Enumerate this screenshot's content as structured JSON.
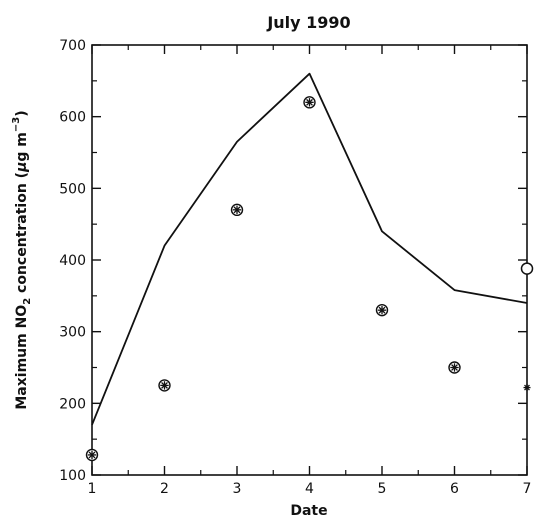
{
  "chart_data": {
    "type": "line",
    "title": "July 1990",
    "xlabel": "Date",
    "ylabel_parts": {
      "pre": "Maximum NO",
      "sub": "2",
      "mid": " concentration (",
      "mu": "μ",
      "unit": "g m",
      "sup": "−3",
      "post": ")"
    },
    "xlim": [
      1,
      7
    ],
    "ylim": [
      100,
      700
    ],
    "x_ticks": [
      "1",
      "2",
      "3",
      "4",
      "5",
      "6",
      "7"
    ],
    "y_ticks": [
      "100",
      "200",
      "300",
      "400",
      "500",
      "600",
      "700"
    ],
    "grid": false,
    "series": [
      {
        "style": "line",
        "x": [
          1,
          2,
          3,
          4,
          5,
          6,
          7
        ],
        "y": [
          170,
          420,
          565,
          660,
          440,
          358,
          340
        ]
      },
      {
        "style": "marker-asterisk-circle",
        "x": [
          1,
          2,
          3,
          4,
          5,
          6
        ],
        "y": [
          128,
          225,
          470,
          620,
          330,
          250
        ]
      },
      {
        "style": "marker-circle",
        "x": [
          7
        ],
        "y": [
          388
        ]
      },
      {
        "style": "marker-asterisk",
        "x": [
          7
        ],
        "y": [
          222
        ]
      }
    ]
  }
}
